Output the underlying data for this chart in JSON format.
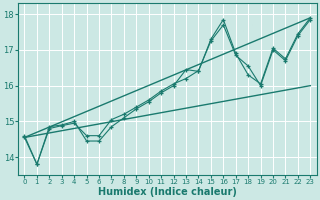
{
  "xlabel": "Humidex (Indice chaleur)",
  "bg_color": "#cce8e4",
  "line_color": "#1a7a6e",
  "grid_color": "#b8d8d4",
  "xlim": [
    -0.5,
    23.5
  ],
  "ylim": [
    13.5,
    18.3
  ],
  "yticks": [
    14,
    15,
    16,
    17,
    18
  ],
  "xticks": [
    0,
    1,
    2,
    3,
    4,
    5,
    6,
    7,
    8,
    9,
    10,
    11,
    12,
    13,
    14,
    15,
    16,
    17,
    18,
    19,
    20,
    21,
    22,
    23
  ],
  "line1_x": [
    0,
    1,
    2,
    3,
    4,
    5,
    6,
    7,
    8,
    9,
    10,
    11,
    12,
    13,
    14,
    15,
    16,
    17,
    18,
    19,
    20,
    21,
    22,
    23
  ],
  "line1_y": [
    14.6,
    13.8,
    14.85,
    14.9,
    15.0,
    14.45,
    14.45,
    14.85,
    15.1,
    15.35,
    15.55,
    15.8,
    16.0,
    16.45,
    16.4,
    17.3,
    17.85,
    16.9,
    16.3,
    16.05,
    17.05,
    16.75,
    17.45,
    17.9
  ],
  "line2_x": [
    0,
    1,
    2,
    3,
    4,
    5,
    6,
    7,
    8,
    9,
    10,
    11,
    12,
    13,
    14,
    15,
    16,
    17,
    18,
    19,
    20,
    21,
    22,
    23
  ],
  "line2_y": [
    14.55,
    13.8,
    14.8,
    14.88,
    14.95,
    14.6,
    14.6,
    15.05,
    15.2,
    15.4,
    15.6,
    15.85,
    16.05,
    16.2,
    16.42,
    17.25,
    17.7,
    16.85,
    16.55,
    16.0,
    17.0,
    16.7,
    17.4,
    17.85
  ],
  "trend1_x": [
    0,
    23
  ],
  "trend1_y": [
    14.55,
    17.9
  ],
  "trend2_x": [
    0,
    23
  ],
  "trend2_y": [
    14.55,
    16.0
  ]
}
